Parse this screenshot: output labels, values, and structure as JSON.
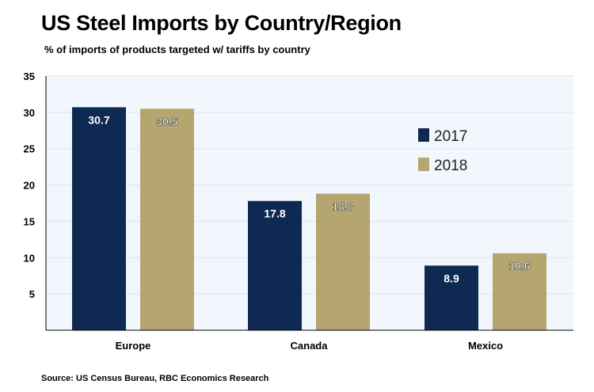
{
  "chart_data": {
    "type": "bar",
    "title": "US Steel Imports by Country/Region",
    "subtitle": "% of imports of products targeted w/ tariffs by country",
    "categories": [
      "Europe",
      "Canada",
      "Mexico"
    ],
    "series": [
      {
        "name": "2017",
        "values": [
          30.7,
          17.8,
          8.9
        ],
        "color": "#0f2a52"
      },
      {
        "name": "2018",
        "values": [
          30.5,
          18.8,
          10.6
        ],
        "color": "#b5a56e"
      }
    ],
    "value_labels": [
      [
        "30.7",
        "17.8",
        "8.9"
      ],
      [
        "30.5",
        "18.8",
        "10.6"
      ]
    ],
    "yticks": [
      "5",
      "10",
      "15",
      "20",
      "25",
      "30",
      "35"
    ],
    "ylim": [
      0,
      35
    ],
    "xlabel": "",
    "ylabel": "",
    "legend_position": "right",
    "plot_background": "#f2f7fd",
    "source": "Source: US Census Bureau, RBC Economics Research"
  }
}
